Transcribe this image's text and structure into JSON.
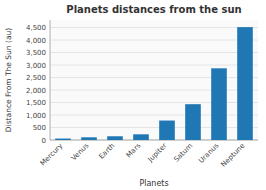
{
  "chart_data": {
    "type": "bar",
    "title": "Planets distances from the sun",
    "xlabel": "Planets",
    "ylabel": "Distance From The Sun (au)",
    "categories": [
      "Mercury",
      "Venus",
      "Earth",
      "Mars",
      "Jupiter",
      "Saturn",
      "Uranus",
      "Neptune"
    ],
    "values": [
      57.9,
      108.2,
      149.6,
      227.9,
      778.5,
      1432.0,
      2867.0,
      4515.0
    ],
    "color": "#1f77b4",
    "ylim": [
      0,
      4800
    ],
    "yticks": [
      0,
      500,
      {
        "value": 1000,
        "label": "1,000"
      },
      {
        "value": 1500,
        "label": "1,500"
      },
      {
        "value": 2000,
        "label": "2,000"
      },
      {
        "value": 2500,
        "label": "2,500"
      },
      {
        "value": 3000,
        "label": "3,000"
      },
      {
        "value": 3500,
        "label": "3,500"
      },
      {
        "value": 4000,
        "label": "4,000"
      },
      {
        "value": 4500,
        "label": "4,500"
      }
    ],
    "grid": true
  }
}
